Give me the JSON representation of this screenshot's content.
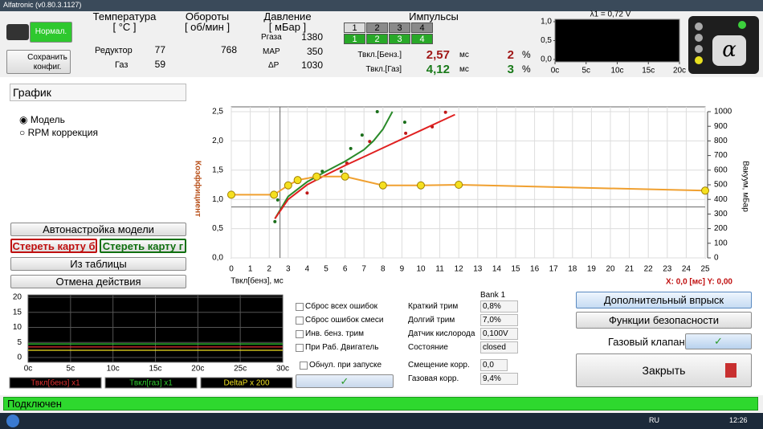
{
  "window": {
    "title": "Alfatronic (v0.80.3.1127)"
  },
  "mode": {
    "button": "Нормал.",
    "save": "Сохранить конфиг."
  },
  "temperature": {
    "title": "Температура",
    "unit": "[ °C ]",
    "rows": [
      {
        "label": "Редуктор",
        "value": "77"
      },
      {
        "label": "Газ",
        "value": "59"
      }
    ]
  },
  "rpm": {
    "title": "Обороты",
    "unit": "[ об/мин ]",
    "value": "768"
  },
  "pressure": {
    "title": "Давление",
    "unit": "[ мБар ]",
    "rows": [
      {
        "label": "Pгаза",
        "value": "1380"
      },
      {
        "label": "MAP",
        "value": "350"
      },
      {
        "label": "ΔP",
        "value": "1030"
      }
    ]
  },
  "pulses": {
    "title": "Импульсы",
    "cylinders": [
      "1",
      "2",
      "3",
      "4"
    ],
    "rows": [
      {
        "label": "Твкл.[Бенз.]",
        "value": "2,57",
        "unit": "мс",
        "percent": "2",
        "percent_unit": "%",
        "color": "#a01818"
      },
      {
        "label": "Твкл.[Газ]",
        "value": "4,12",
        "unit": "мс",
        "percent": "3",
        "percent_unit": "%",
        "color": "#1a7a1a"
      }
    ]
  },
  "lambda_chart": {
    "title": "λ1 = 0,72 V",
    "xlim": [
      0,
      20
    ],
    "xticks": [
      {
        "value": 0,
        "label": "0c"
      },
      {
        "value": 5,
        "label": "5c"
      },
      {
        "value": 10,
        "label": "10c"
      },
      {
        "value": 15,
        "label": "15c"
      },
      {
        "value": 20,
        "label": "20c"
      }
    ],
    "ylim": [
      0,
      1
    ],
    "yticks": [
      {
        "value": 0,
        "label": "0,0"
      },
      {
        "value": 0.5,
        "label": "0,5"
      },
      {
        "value": 1,
        "label": "1,0"
      }
    ]
  },
  "left_panel": {
    "dropdown": "График",
    "radios": [
      "Модель",
      "RPM коррекция"
    ],
    "buttons": {
      "autotune": "Автонастройка модели",
      "erase_petrol": "Стереть карту б",
      "erase_gas": "Стереть карту г",
      "from_table": "Из таблицы",
      "undo": "Отмена действия"
    }
  },
  "main_chart": {
    "x_label": "Твкл[бенз], мс",
    "y_label": "Коэффициент",
    "y2_label": "Вакуум, мБар",
    "cursor_label": "X: 0,0 [мс] Y: 0,00",
    "xlim": [
      0,
      25
    ],
    "xticks": [
      0,
      1,
      2,
      3,
      4,
      5,
      6,
      7,
      8,
      9,
      10,
      11,
      12,
      13,
      14,
      15,
      16,
      17,
      18,
      19,
      20,
      21,
      22,
      23,
      24,
      25
    ],
    "ylim": [
      0,
      2.5
    ],
    "yticks": [
      {
        "value": 0,
        "label": "0,0"
      },
      {
        "value": 0.5,
        "label": "0,5"
      },
      {
        "value": 1,
        "label": "1,0"
      },
      {
        "value": 1.5,
        "label": "1,5"
      },
      {
        "value": 2,
        "label": "2,0"
      },
      {
        "value": 2.5,
        "label": "2,5"
      }
    ],
    "y2lim": [
      0,
      1000
    ],
    "y2ticks": [
      0,
      100,
      200,
      300,
      400,
      500,
      600,
      700,
      800,
      900,
      1000
    ],
    "cursor": {
      "x": 2.57,
      "y": 0.87
    },
    "lines": [
      {
        "color": "#2a8a2a",
        "x": [
          2.3,
          3,
          4,
          5,
          6,
          7,
          7.5,
          8,
          8.5
        ],
        "values": [
          0.67,
          1.05,
          1.3,
          1.48,
          1.65,
          1.85,
          2.0,
          2.2,
          2.5
        ]
      },
      {
        "color": "#e02020",
        "x": [
          2.3,
          3,
          4,
          5,
          6,
          7,
          8,
          9,
          10,
          11,
          11.8
        ],
        "values": [
          0.67,
          1.0,
          1.25,
          1.42,
          1.58,
          1.73,
          1.88,
          2.03,
          2.18,
          2.33,
          2.45
        ]
      }
    ],
    "dots": [
      {
        "color": "#c01818",
        "x": [
          4.0,
          6.1,
          7.3,
          9.2,
          10.6,
          11.3
        ],
        "values": [
          1.11,
          1.62,
          1.99,
          2.13,
          2.24,
          2.49
        ]
      },
      {
        "color": "#1a6e1a",
        "x": [
          2.3,
          2.45,
          4.8,
          5.8,
          6.3,
          6.9,
          7.7,
          9.15
        ],
        "values": [
          0.62,
          0.99,
          1.48,
          1.48,
          1.87,
          2.1,
          2.5,
          2.32
        ]
      }
    ],
    "points": {
      "color": "#f5e020",
      "line": "#f0a030",
      "x": [
        0,
        2.25,
        3,
        3.5,
        4.5,
        6,
        8,
        10,
        12,
        25
      ],
      "values": [
        1.08,
        1.08,
        1.24,
        1.33,
        1.39,
        1.39,
        1.24,
        1.24,
        1.25,
        1.15
      ]
    }
  },
  "trace_chart": {
    "xlim": [
      0,
      30
    ],
    "xticks": [
      {
        "value": 0,
        "label": "0c"
      },
      {
        "value": 5,
        "label": "5c"
      },
      {
        "value": 10,
        "label": "10c"
      },
      {
        "value": 15,
        "label": "15c"
      },
      {
        "value": 20,
        "label": "20c"
      },
      {
        "value": 25,
        "label": "25c"
      },
      {
        "value": 30,
        "label": "30c"
      }
    ],
    "ylim": [
      0,
      20
    ],
    "yticks": [
      0,
      5,
      10,
      15,
      20
    ],
    "series": [
      {
        "name": "Твкл[бенз] x1",
        "color": "#e03030",
        "x": [
          0,
          5,
          10,
          15,
          20,
          25,
          30
        ],
        "values": [
          3.5,
          3.5,
          3.5,
          3.5,
          3.5,
          3.5,
          3.5
        ]
      },
      {
        "name": "Твкл[газ] x1",
        "color": "#30d030",
        "x": [
          0,
          5,
          10,
          15,
          20,
          25,
          30
        ],
        "values": [
          4.5,
          4.5,
          4.5,
          4.5,
          4.5,
          4.5,
          4.5
        ]
      },
      {
        "name": "DeltaP x 200",
        "color": "#f0e020",
        "x": [
          0,
          5,
          10,
          15,
          20,
          25,
          30
        ],
        "values": [
          2.4,
          2.4,
          2.4,
          2.4,
          2.4,
          2.4,
          2.4
        ]
      }
    ]
  },
  "checkboxes": [
    "Сброс всех ошибок",
    "Сброс ошибок смеси",
    "Инв. бенз. трим",
    "При Раб. Двигатель",
    "Обнул. при запуске"
  ],
  "bank": {
    "title": "Bank 1",
    "rows": [
      {
        "label": "Краткий трим",
        "value": "0,8%"
      },
      {
        "label": "Долгий трим",
        "value": "7,0%"
      },
      {
        "label": "Датчик кислорода",
        "value": "0,100V"
      },
      {
        "label": "Состояние",
        "value": "closed"
      },
      {
        "label": "Смещение корр.",
        "value": "0,0"
      },
      {
        "label": "Газовая корр.",
        "value": "9,4%"
      }
    ]
  },
  "actions": {
    "extra_injection": "Дополнительный впрыск",
    "safety": "Функции безопасности",
    "gas_valve": "Газовый клапан",
    "close": "Закрыть"
  },
  "status": "Подключен",
  "taskbar": {
    "language": "RU",
    "time": "12:26"
  }
}
